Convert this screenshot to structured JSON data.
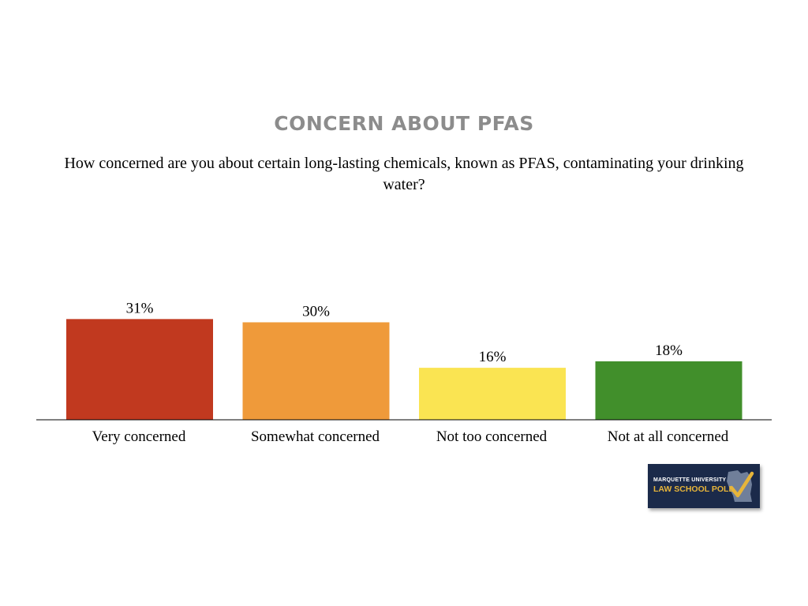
{
  "chart_data": {
    "type": "bar",
    "title": "CONCERN ABOUT PFAS",
    "subtitle": "How concerned are you about certain long-lasting chemicals, known as PFAS, contaminating your drinking water?",
    "categories": [
      "Very concerned",
      "Somewhat concerned",
      "Not too concerned",
      "Not at all concerned"
    ],
    "values": [
      31,
      30,
      16,
      18
    ],
    "value_labels": [
      "31%",
      "30%",
      "16%",
      "18%"
    ],
    "colors": [
      "#c1391f",
      "#ef9a3a",
      "#fae452",
      "#418f2b"
    ],
    "ylim": [
      0,
      34
    ],
    "grid": false,
    "legend": "none"
  },
  "logo": {
    "line1": "MARQUETTE UNIVERSITY",
    "line2": "LAW SCHOOL POLL",
    "icon": "wisconsin-checkmark-icon",
    "background": "#1b2a4a",
    "accent": "#e7b53a"
  }
}
